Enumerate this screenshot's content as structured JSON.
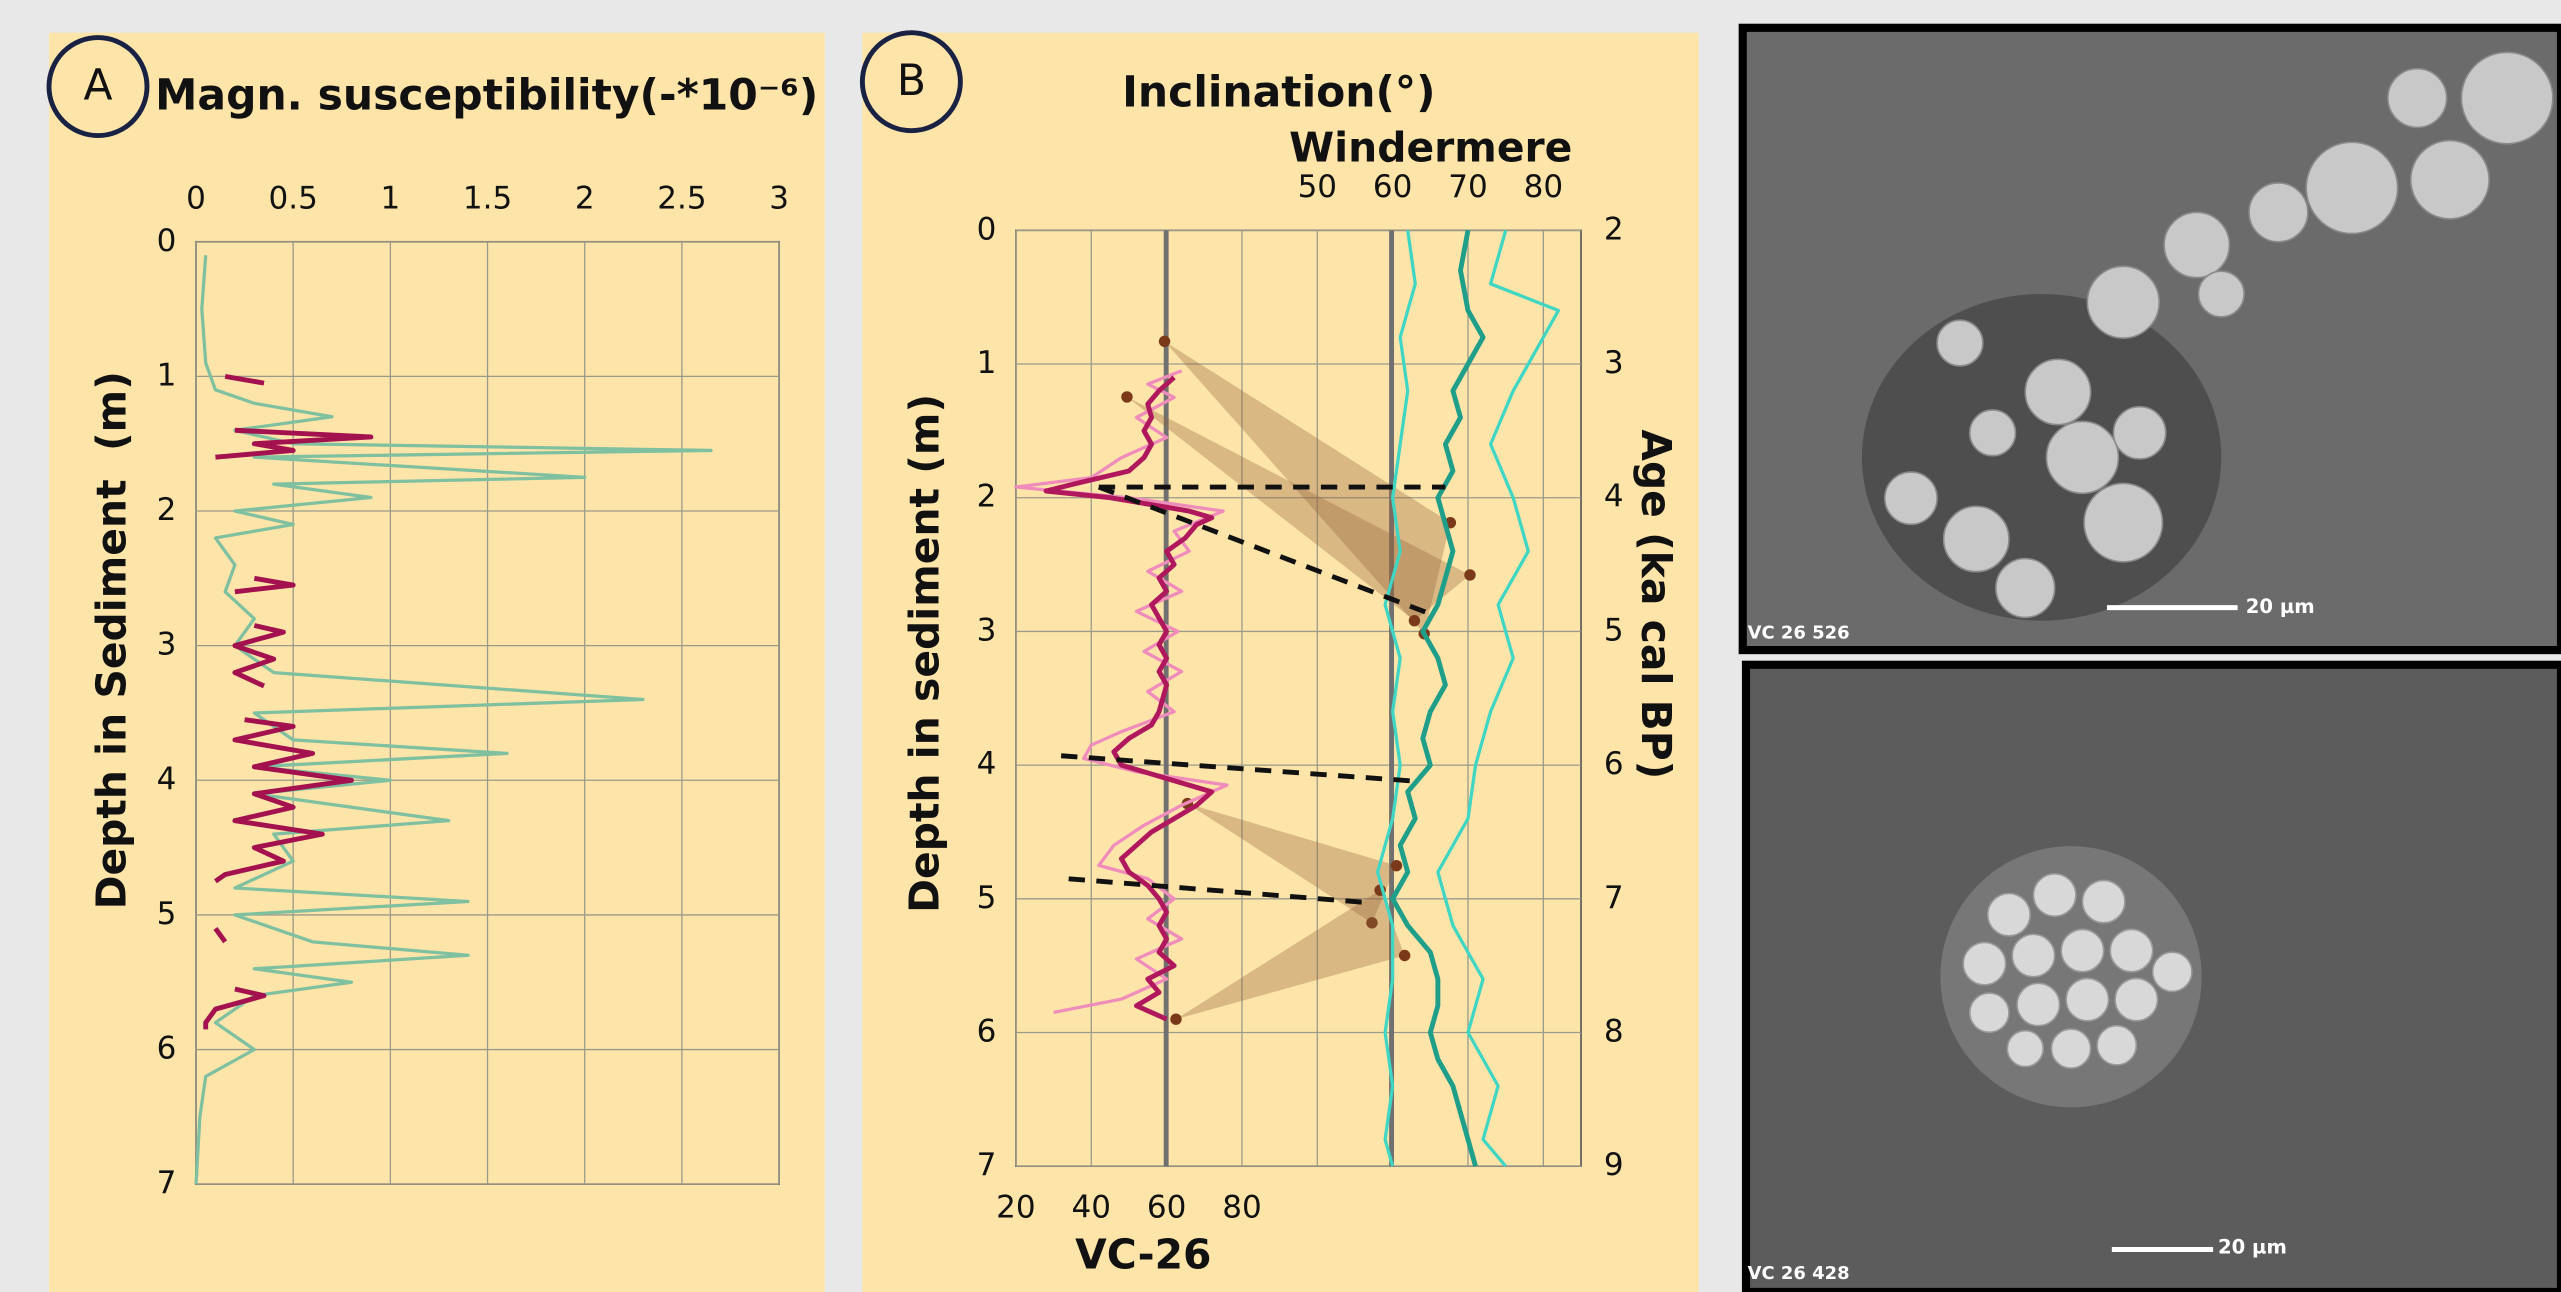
{
  "chart_data": [
    {
      "type": "line",
      "panel": "A",
      "title": "Magn. susceptibility(-*10⁻⁶)",
      "y_label": "Depth in Sediment  (m)",
      "xlim": [
        0,
        3
      ],
      "xticks": [
        0,
        0.5,
        1,
        1.5,
        2,
        2.5,
        3
      ],
      "ylim": [
        0,
        7
      ],
      "yticks": [
        0,
        1,
        2,
        3,
        4,
        5,
        6,
        7
      ],
      "y_inverted": true,
      "grid": true,
      "series": [
        {
          "color": "#7fc0a0",
          "y": [
            0.1,
            0.5,
            0.9,
            1.1,
            1.2,
            1.3,
            1.4,
            1.5,
            1.55,
            1.6,
            1.75,
            1.8,
            1.9,
            2.0,
            2.1,
            2.2,
            2.4,
            2.6,
            2.8,
            3.0,
            3.2,
            3.4,
            3.5,
            3.7,
            3.8,
            3.9,
            4.0,
            4.1,
            4.3,
            4.4,
            4.6,
            4.8,
            4.9,
            5.0,
            5.2,
            5.3,
            5.4,
            5.5,
            5.6,
            5.8,
            6.0,
            6.2,
            6.5,
            7.0
          ],
          "values": [
            0.05,
            0.03,
            0.05,
            0.1,
            0.3,
            0.7,
            0.2,
            0.5,
            2.65,
            0.3,
            2.0,
            0.4,
            0.9,
            0.2,
            0.5,
            0.1,
            0.2,
            0.15,
            0.3,
            0.2,
            0.4,
            2.3,
            0.3,
            0.5,
            1.6,
            0.3,
            1.0,
            0.3,
            1.3,
            0.4,
            0.5,
            0.2,
            1.4,
            0.2,
            0.6,
            1.4,
            0.3,
            0.8,
            0.3,
            0.1,
            0.3,
            0.05,
            0.02,
            0.0
          ]
        },
        {
          "color": "#a3114f",
          "y": [
            1.0,
            1.05,
            null,
            1.4,
            1.45,
            1.5,
            1.55,
            1.6,
            null,
            2.5,
            2.55,
            2.6,
            null,
            2.85,
            2.9,
            3.0,
            3.1,
            3.2,
            3.3,
            null,
            3.55,
            3.6,
            3.7,
            3.8,
            3.9,
            4.0,
            4.1,
            4.2,
            4.3,
            4.4,
            4.5,
            4.6,
            4.7,
            4.75,
            null,
            5.1,
            5.2,
            null,
            5.55,
            5.6,
            5.7,
            5.8,
            5.85
          ],
          "values": [
            0.15,
            0.35,
            null,
            0.2,
            0.9,
            0.3,
            0.5,
            0.1,
            null,
            0.3,
            0.5,
            0.2,
            null,
            0.3,
            0.45,
            0.2,
            0.4,
            0.2,
            0.35,
            null,
            0.25,
            0.5,
            0.2,
            0.6,
            0.3,
            0.8,
            0.3,
            0.5,
            0.2,
            0.65,
            0.3,
            0.45,
            0.15,
            0.1,
            null,
            0.1,
            0.15,
            null,
            0.2,
            0.35,
            0.1,
            0.05,
            0.05
          ]
        }
      ]
    },
    {
      "type": "line",
      "panel": "B",
      "title": "Inclination(°)",
      "x_label": "VC-26",
      "x2_label": "Windermere",
      "y_label": "Depth in sediment (m)",
      "y2_label": "Age (ka cal BP)",
      "xlim": [
        20,
        170
      ],
      "xticks": [
        20,
        40,
        60,
        80
      ],
      "x2lim": [
        10,
        85
      ],
      "x2ticks": [
        50,
        60,
        70,
        80
      ],
      "ylim": [
        0,
        7
      ],
      "yticks": [
        0,
        1,
        2,
        3,
        4,
        5,
        6,
        7
      ],
      "y2lim": [
        2,
        9
      ],
      "y2ticks": [
        2,
        3,
        4,
        5,
        6,
        7,
        8,
        9
      ],
      "y_inverted": true,
      "grid": true,
      "series": [
        {
          "color": "#f08cbc",
          "y": [
            1.05,
            1.15,
            1.25,
            1.4,
            1.55,
            1.7,
            1.85,
            1.92,
            2.0,
            2.1,
            2.25,
            2.4,
            2.55,
            2.7,
            2.85,
            3.0,
            3.15,
            3.3,
            3.45,
            3.6,
            3.75,
            3.85,
            3.95,
            4.05,
            4.15,
            4.3,
            4.45,
            4.6,
            4.75,
            4.85,
            5.0,
            5.15,
            5.3,
            5.45,
            5.6,
            5.75,
            5.85
          ],
          "values": [
            64,
            55,
            62,
            52,
            60,
            48,
            40,
            20,
            50,
            75,
            62,
            66,
            55,
            64,
            52,
            63,
            54,
            64,
            55,
            62,
            48,
            40,
            38,
            52,
            76,
            64,
            54,
            46,
            42,
            55,
            62,
            55,
            64,
            52,
            60,
            48,
            30
          ]
        },
        {
          "color": "#b0185e",
          "y": [
            1.1,
            1.2,
            1.3,
            1.4,
            1.5,
            1.6,
            1.7,
            1.8,
            1.9,
            1.95,
            2.0,
            2.1,
            2.15,
            2.2,
            2.3,
            2.4,
            2.5,
            2.6,
            2.7,
            2.8,
            2.9,
            3.0,
            3.1,
            3.2,
            3.3,
            3.4,
            3.5,
            3.6,
            3.7,
            3.8,
            3.9,
            4.0,
            4.1,
            4.2,
            4.3,
            4.4,
            4.5,
            4.6,
            4.7,
            4.8,
            4.9,
            5.0,
            5.1,
            5.2,
            5.3,
            5.4,
            5.5,
            5.6,
            5.7,
            5.8,
            5.9
          ],
          "values": [
            62,
            58,
            55,
            56,
            54,
            56,
            54,
            50,
            35,
            28,
            45,
            66,
            72,
            68,
            65,
            60,
            62,
            58,
            60,
            56,
            58,
            60,
            58,
            60,
            58,
            60,
            59,
            58,
            56,
            50,
            46,
            48,
            60,
            72,
            68,
            62,
            56,
            52,
            48,
            50,
            55,
            58,
            60,
            58,
            60,
            58,
            62,
            55,
            58,
            52,
            60
          ]
        },
        {
          "color": "#3fd6c4",
          "axis": "x2",
          "y": [
            0,
            0.4,
            0.8,
            1.2,
            1.6,
            2.0,
            2.4,
            2.8,
            3.2,
            3.6,
            4.0,
            4.4,
            4.8,
            5.2,
            5.6,
            6.0,
            6.4,
            6.8,
            7.0
          ],
          "values": [
            62,
            63,
            61,
            62,
            61,
            60,
            61,
            59,
            61,
            60,
            61,
            60,
            58,
            60,
            60,
            59,
            60,
            59,
            60
          ]
        },
        {
          "color": "#3fd6c4",
          "axis": "x2",
          "y": [
            0,
            0.4,
            0.6,
            0.8,
            1.2,
            1.6,
            2.0,
            2.4,
            2.8,
            3.2,
            3.6,
            4.0,
            4.4,
            4.8,
            5.2,
            5.6,
            6.0,
            6.4,
            6.8,
            7.0
          ],
          "values": [
            75,
            73,
            82,
            80,
            76,
            73,
            76,
            78,
            74,
            76,
            73,
            71,
            70,
            66,
            68,
            72,
            70,
            74,
            72,
            75
          ]
        },
        {
          "color": "#1f9e8a",
          "axis": "x2",
          "y": [
            0.0,
            0.3,
            0.6,
            0.8,
            1.0,
            1.2,
            1.4,
            1.6,
            1.8,
            2.0,
            2.2,
            2.4,
            2.6,
            2.8,
            3.0,
            3.2,
            3.4,
            3.6,
            3.8,
            4.0,
            4.2,
            4.4,
            4.6,
            4.8,
            5.0,
            5.2,
            5.4,
            5.6,
            5.8,
            6.0,
            6.2,
            6.4,
            6.6,
            6.8,
            7.0
          ],
          "values": [
            70,
            69,
            70,
            72,
            70,
            68,
            69,
            67,
            68,
            66,
            67,
            68,
            67,
            66,
            64,
            66,
            67,
            65,
            64,
            65,
            62,
            63,
            61,
            62,
            60,
            62,
            65,
            66,
            66,
            65,
            66,
            68,
            69,
            70,
            71
          ]
        }
      ],
      "tie_lines": [
        {
          "x": [
            42,
            134
          ],
          "y": [
            1.92,
            1.92
          ]
        },
        {
          "x": [
            42,
            131
          ],
          "y": [
            1.92,
            2.88
          ]
        },
        {
          "x": [
            32,
            126
          ],
          "y": [
            3.93,
            4.12
          ]
        },
        {
          "x": [
            34,
            114
          ],
          "y": [
            4.85,
            5.03
          ]
        }
      ]
    }
  ],
  "images": [
    {
      "label": "VC 26 526",
      "scale": "20 µm"
    },
    {
      "label": "VC 26 428",
      "scale": "20 µm"
    }
  ]
}
